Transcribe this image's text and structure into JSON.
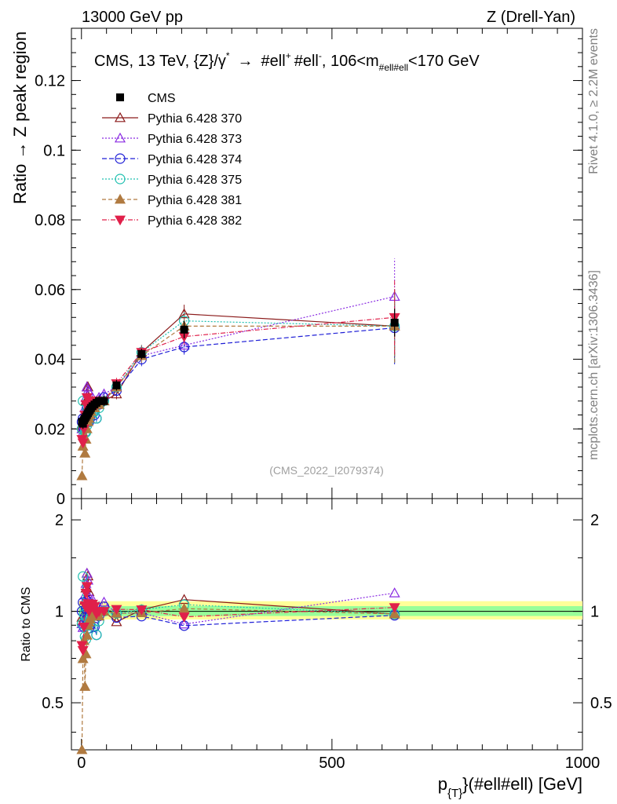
{
  "header": {
    "left": "13000 GeV pp",
    "right": "Z (Drell-Yan)",
    "side_rivet": "Rivet 4.1.0, ≥ 2.2M events",
    "side_mcplots": "mcplots.cern.ch [arXiv:1306.3436]",
    "analysis_id": "(CMS_2022_I2079374)"
  },
  "chart_data": {
    "type": "scatter",
    "title": "CMS, 13 TeV, {Z}/γ* → #ell+ #ell-, 106<m#ell#ell<170 GeV",
    "title_parts": {
      "lead": "CMS, 13 TeV, {Z}/γ",
      "star": "*",
      "arrow": "→",
      "ell1": "#ell",
      "plus": "+",
      "ell2": "#ell",
      "minus": "-",
      "range_a": ", 106<m",
      "sub": "#ell#ell",
      "range_b": "<170 GeV"
    },
    "xlabel_main": "p",
    "xlabel_sub": "{T}",
    "xlabel_rest": "}(#ell#ell) [GeV]",
    "ylabel": "Ratio → Z peak region",
    "ratio_ylabel": "Ratio to CMS",
    "xlim": [
      -20,
      1000
    ],
    "ylim": [
      0,
      0.135
    ],
    "ratio_ylim": [
      0.35,
      2.35
    ],
    "x_ticks": [
      0,
      500,
      1000
    ],
    "y_ticks": [
      0,
      0.02,
      0.04,
      0.06,
      0.08,
      0.1,
      0.12
    ],
    "y_tick_labels": [
      "0",
      "0.02",
      "0.04",
      "0.06",
      "0.08",
      "0.1",
      "0.12"
    ],
    "ratio_ticks": [
      0.5,
      1,
      2
    ],
    "ratio_tick_labels": [
      "0.5",
      "1",
      "2"
    ],
    "x": [
      1,
      3,
      5,
      7,
      9,
      11,
      13,
      15,
      17,
      19,
      22,
      26,
      30,
      35,
      45,
      70,
      120,
      205,
      625
    ],
    "data": {
      "name": "CMS",
      "values": [
        0.022,
        0.0215,
        0.0225,
        0.023,
        0.0235,
        0.024,
        0.0245,
        0.025,
        0.0255,
        0.026,
        0.0265,
        0.027,
        0.0275,
        0.028,
        0.028,
        0.0325,
        0.0415,
        0.0485,
        0.0505
      ],
      "err": [
        0.0015,
        0.0015,
        0.0015,
        0.0015,
        0.0015,
        0.0015,
        0.0015,
        0.0015,
        0.0015,
        0.0015,
        0.0015,
        0.0015,
        0.0015,
        0.0015,
        0.0015,
        0.0015,
        0.0015,
        0.0025,
        0.004
      ]
    },
    "series": [
      {
        "name": "Pythia 6.428 370",
        "color": "#8b1a1a",
        "dash": "",
        "marker": "tri-up-open",
        "values": [
          0.021,
          0.02,
          0.022,
          0.025,
          0.028,
          0.032,
          0.032,
          0.029,
          0.027,
          0.027,
          0.028,
          0.026,
          0.027,
          0.027,
          0.028,
          0.03,
          0.042,
          0.053,
          0.0495
        ]
      },
      {
        "name": "Pythia 6.428 373",
        "color": "#8a2be2",
        "dash": "2,2",
        "marker": "tri-up-open",
        "values": [
          0.02,
          0.019,
          0.021,
          0.026,
          0.029,
          0.032,
          0.031,
          0.028,
          0.026,
          0.027,
          0.029,
          0.027,
          0.028,
          0.029,
          0.03,
          0.032,
          0.041,
          0.044,
          0.058
        ]
      },
      {
        "name": "Pythia 6.428 374",
        "color": "#1f1fd6",
        "dash": "6,3",
        "marker": "circle-open",
        "values": [
          0.022,
          0.023,
          0.02,
          0.022,
          0.024,
          0.026,
          0.024,
          0.022,
          0.023,
          0.025,
          0.026,
          0.024,
          0.023,
          0.027,
          0.029,
          0.031,
          0.04,
          0.0435,
          0.049
        ]
      },
      {
        "name": "Pythia 6.428 375",
        "color": "#20c0b0",
        "dash": "2,2",
        "marker": "circle-open",
        "values": [
          0.02,
          0.028,
          0.022,
          0.019,
          0.019,
          0.021,
          0.022,
          0.023,
          0.024,
          0.025,
          0.026,
          0.025,
          0.023,
          0.026,
          0.028,
          0.032,
          0.042,
          0.051,
          0.0495
        ]
      },
      {
        "name": "Pythia 6.428 381",
        "color": "#b07a40",
        "dash": "5,3",
        "marker": "tri-up-filled",
        "values": [
          0.0065,
          0.015,
          0.018,
          0.013,
          0.017,
          0.02,
          0.022,
          0.023,
          0.024,
          0.025,
          0.026,
          0.026,
          0.027,
          0.027,
          0.028,
          0.032,
          0.041,
          0.0495,
          0.0495
        ]
      },
      {
        "name": "Pythia 6.428 382",
        "color": "#e0204a",
        "dash": "6,2,1,2",
        "marker": "tri-down-filled",
        "values": [
          0.017,
          0.016,
          0.02,
          0.024,
          0.027,
          0.029,
          0.026,
          0.025,
          0.026,
          0.027,
          0.028,
          0.028,
          0.027,
          0.028,
          0.028,
          0.033,
          0.042,
          0.0465,
          0.052
        ]
      }
    ]
  }
}
